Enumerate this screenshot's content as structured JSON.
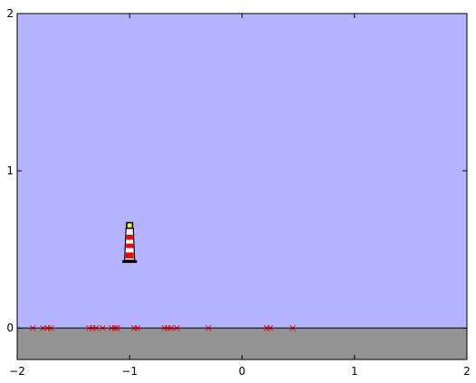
{
  "chart_data": {
    "type": "scatter",
    "title": "",
    "xlabel": "",
    "ylabel": "",
    "xlim": [
      -2,
      2
    ],
    "ylim": [
      -0.2,
      2
    ],
    "xticks": [
      -2,
      -1,
      0,
      1,
      2
    ],
    "yticks": [
      0,
      1,
      2
    ],
    "xtick_labels": [
      "−2",
      "−1",
      "0",
      "1",
      "2"
    ],
    "ytick_labels": [
      "0",
      "1",
      "2"
    ],
    "grid": false,
    "regions": {
      "sky": {
        "y_range": [
          0,
          2
        ],
        "color": "#b3b3ff"
      },
      "ground": {
        "y_range": [
          -0.2,
          0
        ],
        "color": "#939393"
      }
    },
    "lighthouse": {
      "x": -1.0,
      "y_base": 0.42,
      "y_top": 0.67,
      "colors": {
        "tower": "#ffffff",
        "stripes": "#ff0000",
        "lamp": "#ffff00",
        "outline": "#000000"
      }
    },
    "series": [
      {
        "marker": "x",
        "color": "#ff0000",
        "points": [
          {
            "x": -1.86,
            "y": 0
          },
          {
            "x": -1.77,
            "y": 0
          },
          {
            "x": -1.73,
            "y": 0
          },
          {
            "x": -1.7,
            "y": 0
          },
          {
            "x": -1.36,
            "y": 0
          },
          {
            "x": -1.33,
            "y": 0
          },
          {
            "x": -1.3,
            "y": 0
          },
          {
            "x": -1.24,
            "y": 0
          },
          {
            "x": -1.16,
            "y": 0
          },
          {
            "x": -1.13,
            "y": 0
          },
          {
            "x": -1.11,
            "y": 0
          },
          {
            "x": -0.96,
            "y": 0
          },
          {
            "x": -0.93,
            "y": 0
          },
          {
            "x": -0.69,
            "y": 0
          },
          {
            "x": -0.66,
            "y": 0
          },
          {
            "x": -0.63,
            "y": 0
          },
          {
            "x": -0.58,
            "y": 0
          },
          {
            "x": -0.3,
            "y": 0
          },
          {
            "x": 0.22,
            "y": 0
          },
          {
            "x": 0.25,
            "y": 0
          },
          {
            "x": 0.45,
            "y": 0
          }
        ]
      }
    ]
  }
}
